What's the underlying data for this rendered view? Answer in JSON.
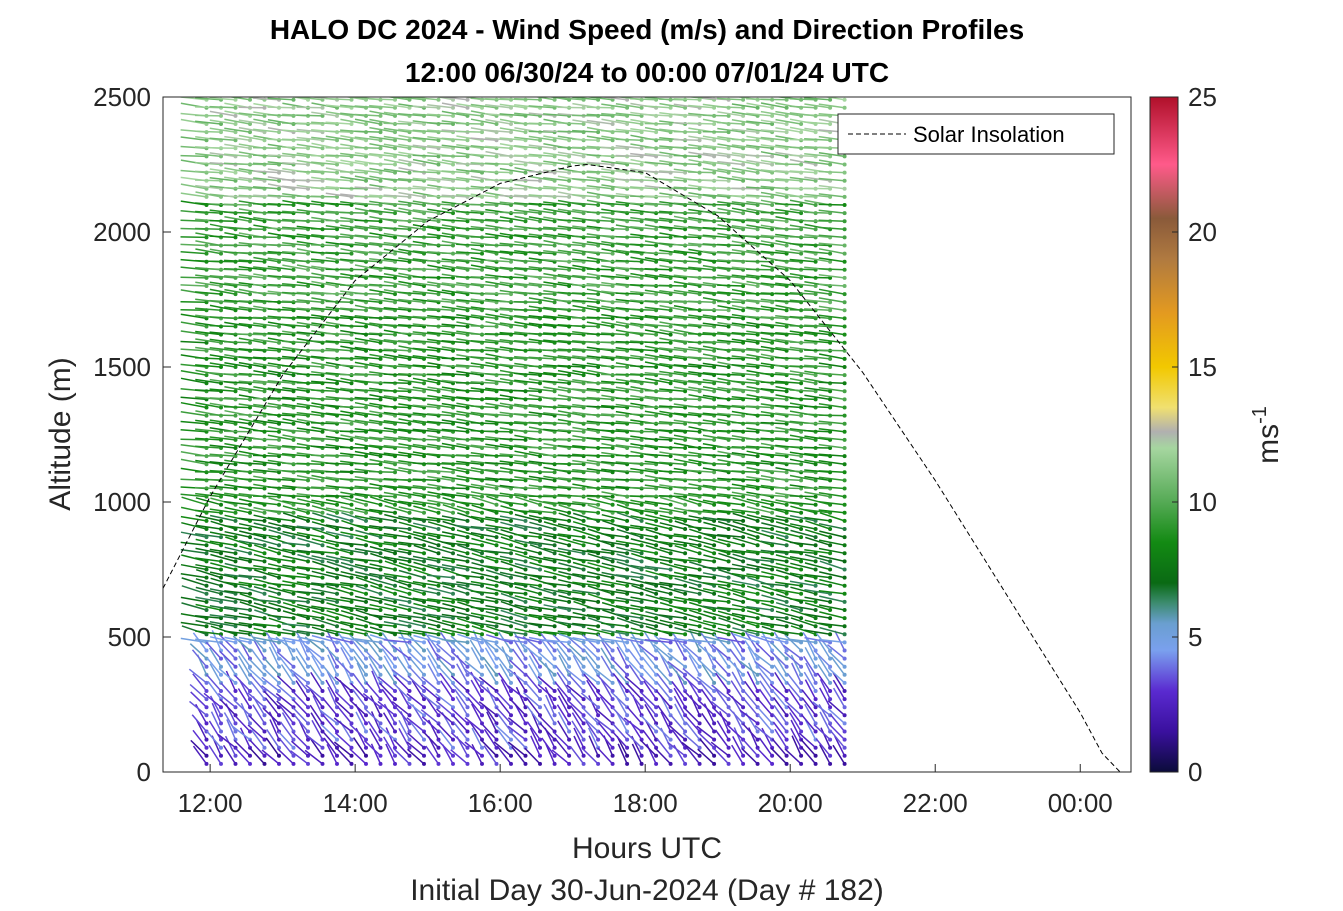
{
  "chart_data": {
    "type": "wind-barb-profile",
    "title": "HALO DC 2024 - Wind Speed (m/s) and Direction Profiles",
    "subtitle": "12:00 06/30/24 to 00:00 07/01/24  UTC",
    "xlabel": "Hours UTC",
    "xlabel2": "Initial Day 30-Jun-2024 (Day # 182)",
    "ylabel": "Altitude (m)",
    "xlim": [
      11.35,
      24.7
    ],
    "ylim": [
      0,
      2500
    ],
    "xticks": [
      12,
      14,
      16,
      18,
      20,
      22,
      24
    ],
    "xtick_labels": [
      "12:00",
      "14:00",
      "16:00",
      "18:00",
      "20:00",
      "22:00",
      "00:00"
    ],
    "yticks": [
      0,
      500,
      1000,
      1500,
      2000,
      2500
    ],
    "ytick_labels": [
      "0",
      "500",
      "1000",
      "1500",
      "2000",
      "2500"
    ],
    "colorbar": {
      "label_base": "ms",
      "label_exp": "-1",
      "range": [
        0,
        25
      ],
      "ticks": [
        0,
        5,
        10,
        15,
        20,
        25
      ],
      "tick_labels": [
        "0",
        "5",
        "10",
        "15",
        "20",
        "25"
      ],
      "stops": [
        {
          "v": 0,
          "c": "#0b0b3a"
        },
        {
          "v": 1.5,
          "c": "#3a109e"
        },
        {
          "v": 3,
          "c": "#5a2ad0"
        },
        {
          "v": 4.5,
          "c": "#7aa0ee"
        },
        {
          "v": 5.5,
          "c": "#6a9fd0"
        },
        {
          "v": 6.3,
          "c": "#3a8a6a"
        },
        {
          "v": 7,
          "c": "#0a6a14"
        },
        {
          "v": 8.5,
          "c": "#138a13"
        },
        {
          "v": 10,
          "c": "#55aa55"
        },
        {
          "v": 12,
          "c": "#a6d6a0"
        },
        {
          "v": 12.6,
          "c": "#b0b0b0"
        },
        {
          "v": 13.5,
          "c": "#f0e070"
        },
        {
          "v": 15,
          "c": "#f2c800"
        },
        {
          "v": 17,
          "c": "#e39a20"
        },
        {
          "v": 19,
          "c": "#b07a40"
        },
        {
          "v": 20.5,
          "c": "#8a5a3a"
        },
        {
          "v": 22.5,
          "c": "#ff5a8a"
        },
        {
          "v": 25,
          "c": "#b0102a"
        }
      ]
    },
    "legend": {
      "entries": [
        "Solar Insolation"
      ],
      "placement": "top-right"
    },
    "series": [
      {
        "name": "Solar Insolation",
        "style": "dashed-black",
        "x": [
          11.35,
          12.0,
          13.0,
          14.0,
          15.0,
          16.0,
          17.0,
          17.2,
          18.0,
          19.0,
          20.0,
          21.0,
          22.0,
          23.0,
          24.0,
          24.3,
          24.55
        ],
        "y": [
          680,
          1020,
          1470,
          1820,
          2040,
          2180,
          2245,
          2250,
          2220,
          2060,
          1820,
          1480,
          1080,
          650,
          220,
          70,
          0
        ]
      }
    ],
    "wind_field": {
      "time_start": 11.95,
      "time_end": 20.8,
      "time_step": 0.2,
      "altitude_start": 30,
      "altitude_end": 2490,
      "altitude_step": 30,
      "layers": [
        {
          "altitude_max": 80,
          "speed_ms": 2.4,
          "direction": "from south-west"
        },
        {
          "altitude_max": 300,
          "speed_ms": 3.2,
          "direction": "from south-west"
        },
        {
          "altitude_max": 480,
          "speed_ms": 4.6,
          "direction": "from south-west"
        },
        {
          "altitude_max": 950,
          "speed_ms": 7.5,
          "direction": "from west"
        },
        {
          "altitude_max": 1700,
          "speed_ms": 9.0,
          "direction": "from west"
        },
        {
          "altitude_max": 2100,
          "speed_ms": 9.5,
          "direction": "from west"
        },
        {
          "altitude_max": 2490,
          "speed_ms": 11.5,
          "direction": "from west"
        }
      ]
    }
  }
}
